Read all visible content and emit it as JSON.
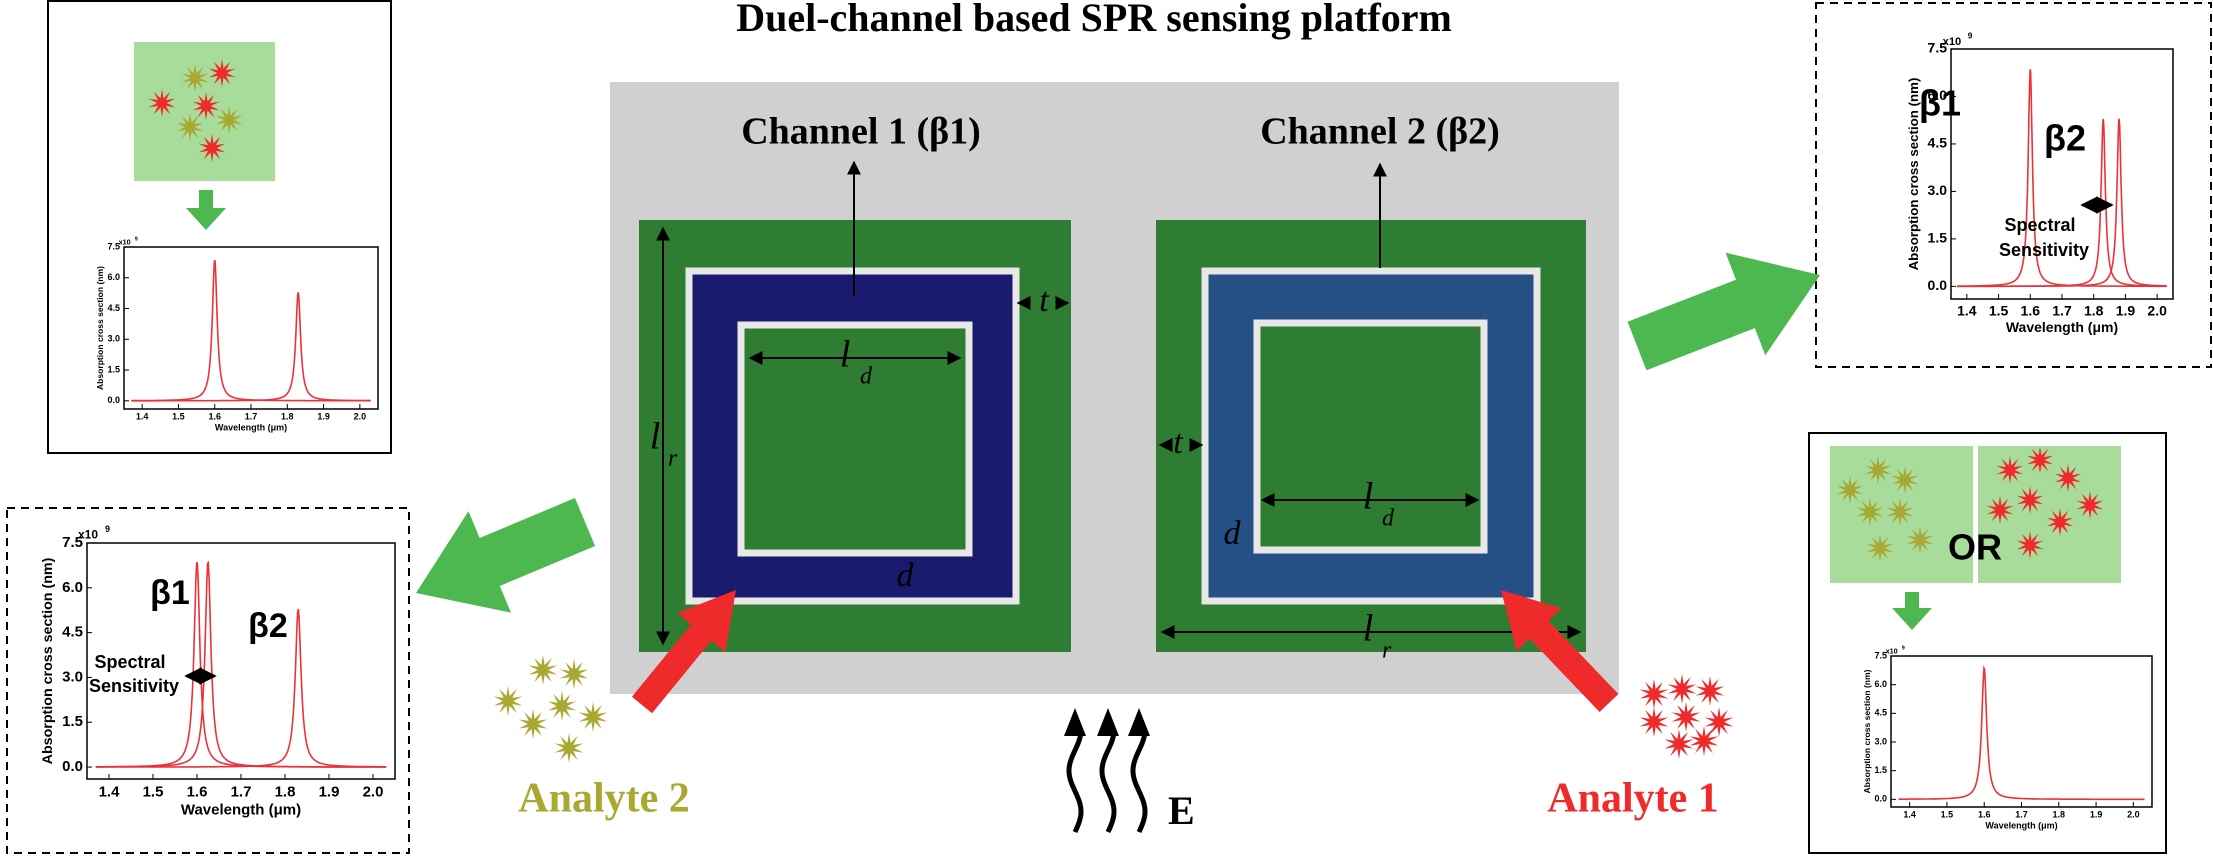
{
  "title": "Duel-channel based SPR sensing platform",
  "channels": [
    {
      "label": "Channel 1 (β1)"
    },
    {
      "label": "Channel 2 (β2)"
    }
  ],
  "dimensions": {
    "t": "t",
    "l": "l",
    "d_sub": "d",
    "r_sub": "r",
    "d": "d"
  },
  "analytes": [
    "Analyte 2",
    "Analyte 1"
  ],
  "field": "E",
  "or_label": "OR",
  "plot_axes": {
    "y_label": "Absorption cross section (nm)",
    "x_label": "Wavelength (μm)",
    "multiplier": "x10",
    "multiplier_exp": "9",
    "xlim": [
      1.35,
      2.05
    ],
    "ylim": [
      -0.4,
      7.5
    ],
    "xticks": [
      1.4,
      1.5,
      1.6,
      1.7,
      1.8,
      1.9,
      {
        "value": 2,
        "label": "2.0"
      }
    ],
    "yticks": [
      {
        "value": 0,
        "label": "0.0"
      },
      1.5,
      {
        "value": 3,
        "label": "3.0"
      },
      4.5,
      {
        "value": 6,
        "label": "6.0"
      },
      7.5
    ]
  },
  "plots": [
    {
      "peaks": [
        {
          "x": 1.6,
          "height": 6.9
        },
        {
          "x": 1.83,
          "height": 5.3
        }
      ],
      "labels": []
    },
    {
      "peaks": [
        {
          "x": 1.6,
          "height": 6.9
        },
        {
          "x": 1.625,
          "height": 6.9
        },
        {
          "x": 1.83,
          "height": 5.3
        }
      ],
      "labels": [
        "β1",
        "β2",
        "Spectral",
        "Sensitivity"
      ]
    },
    {
      "peaks": [
        {
          "x": 1.6,
          "height": 6.9
        },
        {
          "x": 1.83,
          "height": 5.3
        },
        {
          "x": 1.88,
          "height": 5.3
        }
      ],
      "labels": [
        "β1",
        "β2",
        "Spectral",
        "Sensitivity"
      ]
    },
    {
      "peaks": [
        {
          "x": 1.6,
          "height": 6.9
        }
      ],
      "labels": []
    }
  ]
}
